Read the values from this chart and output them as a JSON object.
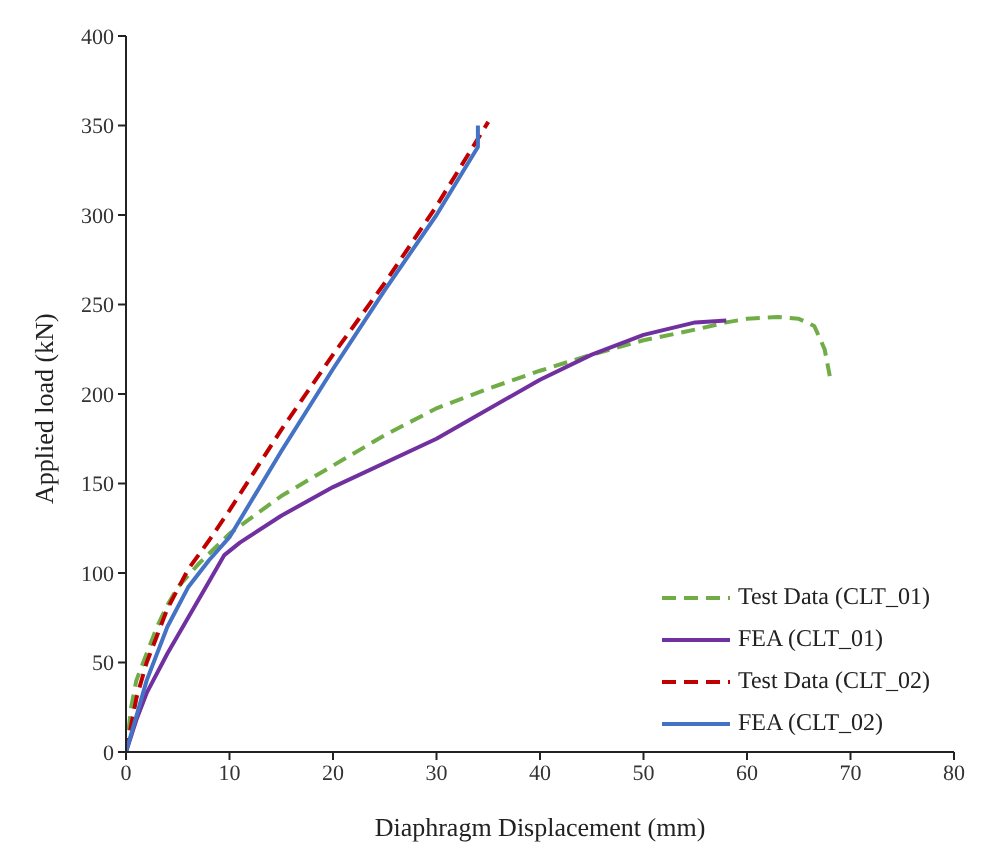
{
  "chart_data": {
    "type": "line",
    "xlabel": "Diaphragm Displacement (mm)",
    "ylabel": "Applied load (kN)",
    "xlim": [
      0,
      80
    ],
    "xticks": [
      0,
      10,
      20,
      30,
      40,
      50,
      60,
      70,
      80
    ],
    "ylim": [
      0,
      400
    ],
    "yticks": [
      0,
      50,
      100,
      150,
      200,
      250,
      300,
      350,
      400
    ],
    "grid": false,
    "legend": "bottom right",
    "marker": "none",
    "series": [
      {
        "name": "Test Data (CLT_01)",
        "color": "#70ad47",
        "line_style": "dashed",
        "x": [
          0,
          0.5,
          1,
          2,
          3,
          4,
          5,
          7,
          10,
          15,
          20,
          25,
          30,
          35,
          40,
          45,
          50,
          55,
          58,
          60,
          63,
          65,
          66.5,
          67.5,
          68
        ],
        "values": [
          0,
          25,
          40,
          55,
          70,
          82,
          92,
          105,
          122,
          143,
          160,
          177,
          192,
          203,
          213,
          222,
          230,
          236,
          240,
          242,
          243,
          242,
          238,
          225,
          210
        ]
      },
      {
        "name": "FEA (CLT_01)",
        "color": "#7030a0",
        "line_style": "solid",
        "x": [
          0,
          1,
          2,
          4,
          6,
          8,
          9.5,
          11,
          15,
          20,
          30,
          40,
          45,
          50,
          55,
          58
        ],
        "values": [
          0,
          18,
          33,
          55,
          75,
          95,
          110,
          117,
          132,
          148,
          175,
          208,
          222,
          233,
          240,
          241
        ]
      },
      {
        "name": "Test Data (CLT_02)",
        "color": "#c00000",
        "line_style": "dashed",
        "x": [
          0,
          1,
          2,
          4,
          6,
          8,
          10,
          15,
          20,
          25,
          30,
          35
        ],
        "values": [
          0,
          30,
          50,
          80,
          102,
          118,
          135,
          180,
          222,
          262,
          305,
          352
        ]
      },
      {
        "name": "FEA (CLT_02)",
        "color": "#4472c4",
        "line_style": "solid",
        "x": [
          0,
          1,
          2,
          4,
          6,
          8,
          10,
          15,
          20,
          25,
          30,
          34,
          34
        ],
        "values": [
          0,
          20,
          40,
          70,
          92,
          107,
          120,
          168,
          214,
          258,
          300,
          338,
          350
        ]
      }
    ]
  }
}
